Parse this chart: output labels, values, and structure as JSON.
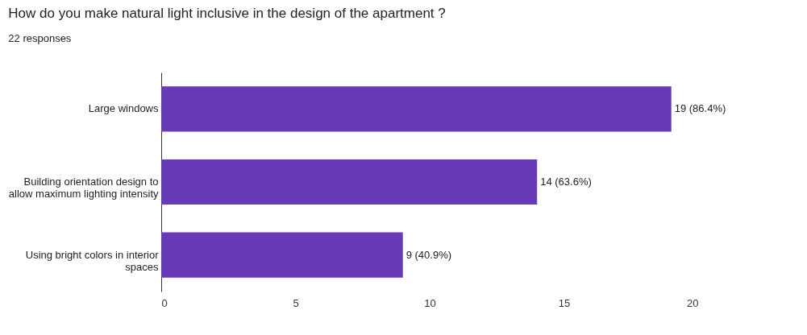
{
  "chart_data": {
    "type": "bar",
    "orientation": "horizontal",
    "title": "How do you make natural light inclusive in the design of the apartment ?",
    "subtitle": "22 responses",
    "categories": [
      "Large windows",
      "Building orientation design to allow maximum lighting intensity",
      "Using bright colors in interior spaces"
    ],
    "values": [
      19,
      14,
      9
    ],
    "color": "#673ab7",
    "value_labels": [
      "19 (86.4%)",
      "14 (63.6%)",
      "9 (40.9%)"
    ],
    "xlim": [
      0,
      20
    ],
    "xticks": [
      0,
      5,
      10,
      15,
      20
    ],
    "grid": false
  }
}
